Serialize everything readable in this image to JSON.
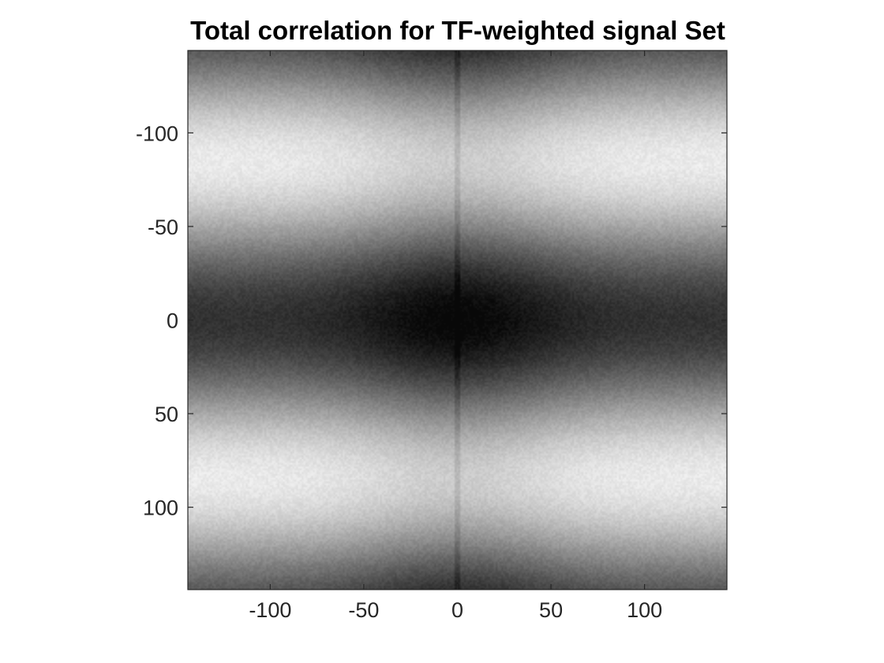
{
  "chart_data": {
    "type": "heatmap",
    "title": "Total correlation for TF-weighted signal Set",
    "xlabel": "",
    "ylabel": "",
    "xlim": [
      -144,
      144
    ],
    "ylim": [
      -144,
      144
    ],
    "y_direction": "reversed",
    "colormap": "gray",
    "grid": false,
    "x_ticks": [
      -100,
      -50,
      0,
      50,
      100
    ],
    "y_ticks": [
      -100,
      -50,
      0,
      50,
      100
    ],
    "x_tick_labels": [
      "-100",
      "-50",
      "0",
      "50",
      "100"
    ],
    "y_tick_labels": [
      "-100",
      "-50",
      "0",
      "50",
      "100"
    ],
    "pattern": {
      "description_of_field": "intensity varies mostly with y: dark bands near y=0 and y=±144, bright bands near y≈±90; darker near x=0 with a thin dark vertical line at x=0",
      "bright_band_centers_y": [
        -95,
        75
      ],
      "dark_band_centers_y": [
        -144,
        0,
        144
      ],
      "dark_column_center_x": 0,
      "intensity_range": [
        0.05,
        0.95
      ]
    }
  },
  "colors": {
    "axis": "#262626",
    "background": "#ffffff",
    "title": "#000000"
  }
}
